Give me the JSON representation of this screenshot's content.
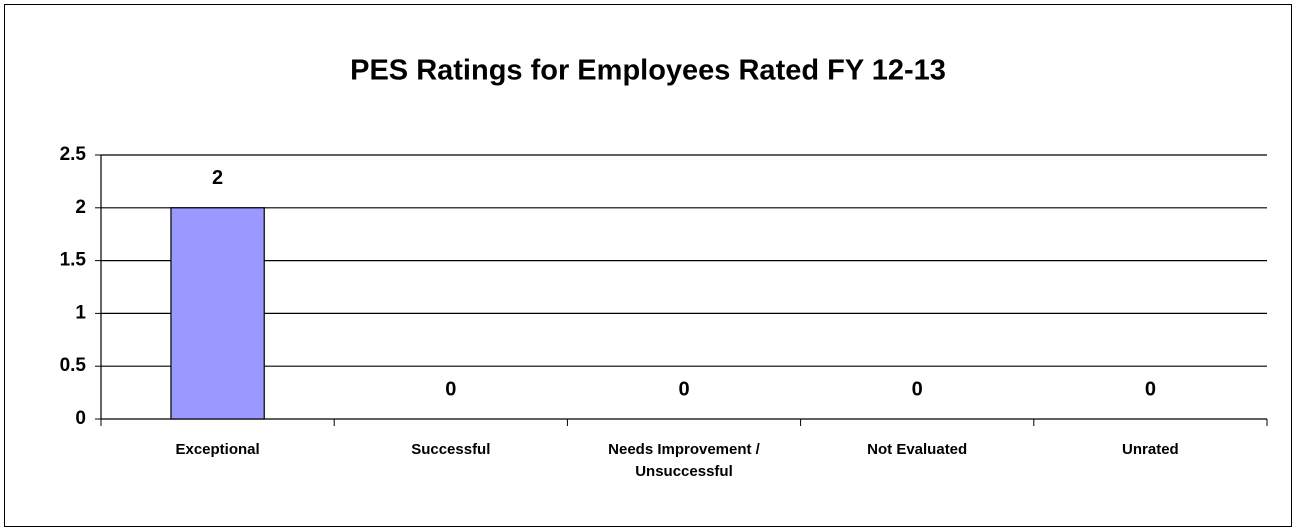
{
  "chart_data": {
    "type": "bar",
    "title": "PES Ratings for Employees Rated FY 12-13",
    "categories": [
      "Exceptional",
      "Successful",
      "Needs Improvement / Unsuccessful",
      "Not Evaluated",
      "Unrated"
    ],
    "values": [
      2,
      0,
      0,
      0,
      0
    ],
    "color": "#9999ff",
    "ylim": [
      0,
      2.5
    ],
    "yticks": [
      0,
      0.5,
      1,
      1.5,
      2,
      2.5
    ],
    "grid": true
  }
}
